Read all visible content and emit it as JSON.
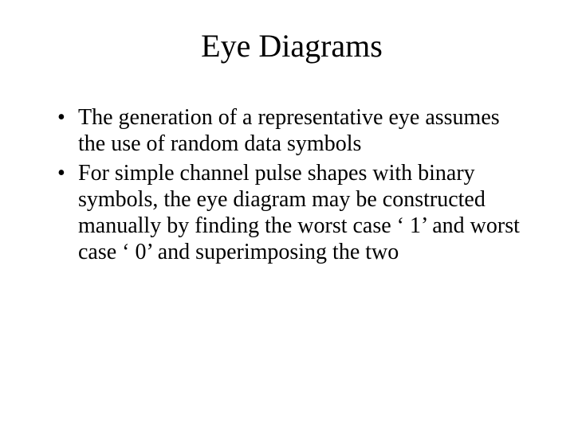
{
  "slide": {
    "title": "Eye Diagrams",
    "title_fontsize": 40,
    "body_fontsize": 28,
    "font_family": "Times New Roman",
    "text_color": "#000000",
    "background_color": "#ffffff",
    "bullets": [
      "The generation of a representative eye assumes the use of random data symbols",
      "For simple channel pulse shapes with binary symbols, the eye diagram may be constructed manually by finding the worst case ‘ 1’ and worst case ‘ 0’ and superimposing the two"
    ]
  }
}
